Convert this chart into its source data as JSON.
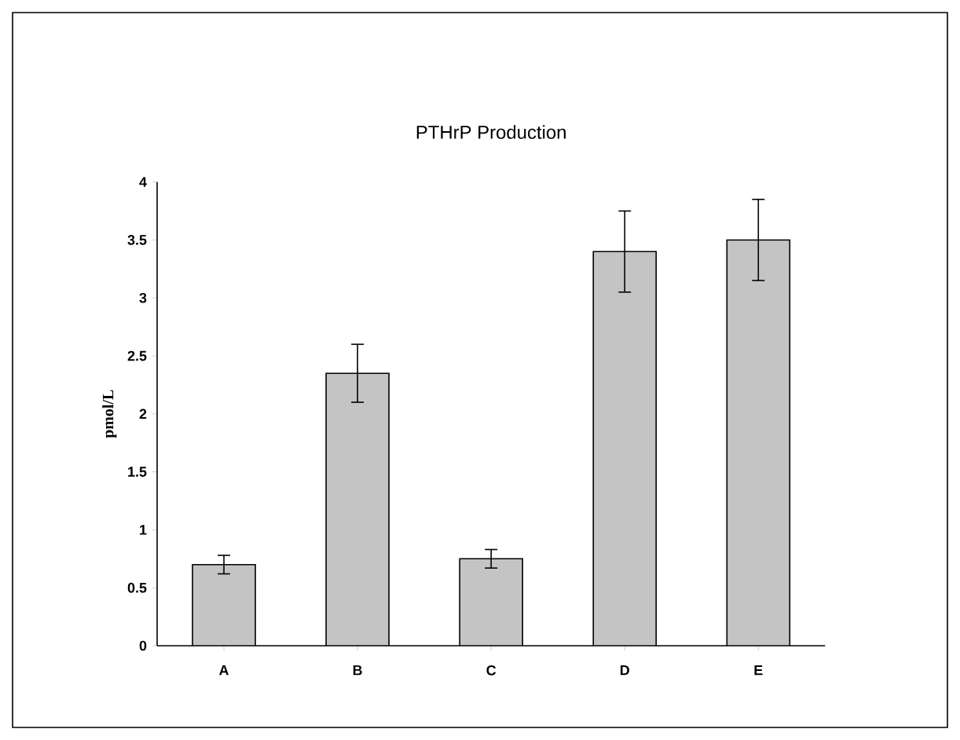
{
  "chart_data": {
    "type": "bar",
    "title": "PTHrP Production",
    "ylabel": "pmol/L",
    "categories": [
      "A",
      "B",
      "C",
      "D",
      "E"
    ],
    "values": [
      0.7,
      2.35,
      0.75,
      3.4,
      3.5
    ],
    "errors": [
      0.08,
      0.25,
      0.08,
      0.35,
      0.35
    ],
    "color": "#c4c4c4",
    "ylim": [
      0,
      4
    ],
    "yticks": [
      0,
      0.5,
      1,
      1.5,
      2,
      2.5,
      3,
      3.5,
      4
    ],
    "grid": false
  }
}
